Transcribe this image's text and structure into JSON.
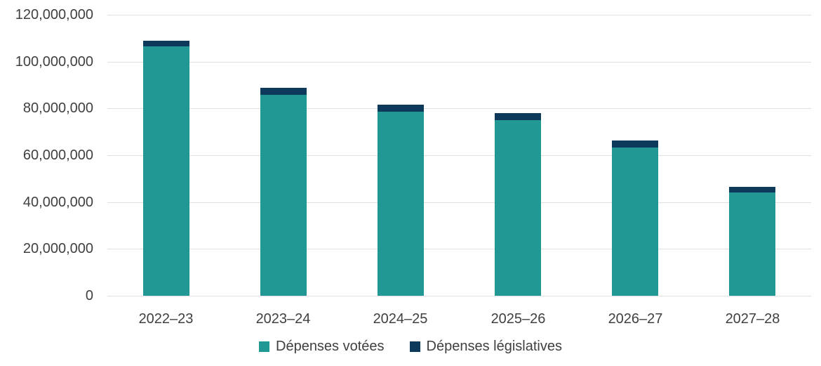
{
  "chart_data": {
    "type": "bar",
    "stacked": true,
    "title": "",
    "xlabel": "",
    "ylabel": "",
    "categories": [
      "2022–23",
      "2023–24",
      "2024–25",
      "2025–26",
      "2026–27",
      "2027–28"
    ],
    "series": [
      {
        "name": "Dépenses votées",
        "color": "#219894",
        "values": [
          106500000,
          85700000,
          78500000,
          75000000,
          63400000,
          44200000
        ]
      },
      {
        "name": "Dépenses législatives",
        "color": "#0D395B",
        "values": [
          2500000,
          3000000,
          3200000,
          3100000,
          3000000,
          2400000
        ]
      }
    ],
    "ylim": [
      0,
      120000000
    ],
    "y_tick_interval": 20000000,
    "y_tick_labels": [
      "0",
      "20,000,000",
      "40,000,000",
      "60,000,000",
      "80,000,000",
      "100,000,000",
      "120,000,000"
    ],
    "grid": "horizontal",
    "legend_position": "bottom"
  },
  "legend": {
    "items": [
      {
        "label": "Dépenses votées",
        "color": "#219894"
      },
      {
        "label": "Dépenses législatives",
        "color": "#0D395B"
      }
    ]
  },
  "colors": {
    "background": "#FFFFFF",
    "gridline": "#E0E0E0",
    "axis_text": "#404040",
    "votees": "#219894",
    "legislatives": "#0D395B"
  }
}
